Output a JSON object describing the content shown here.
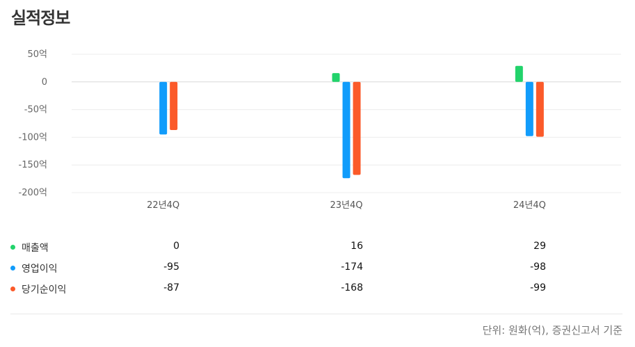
{
  "title": "실적정보",
  "chart_data": {
    "type": "bar",
    "categories": [
      "22년4Q",
      "23년4Q",
      "24년4Q"
    ],
    "series": [
      {
        "name": "매출액",
        "color": "#22d36b",
        "values": [
          0,
          16,
          29
        ]
      },
      {
        "name": "영업이익",
        "color": "#119cfb",
        "values": [
          -95,
          -174,
          -98
        ]
      },
      {
        "name": "당기순이익",
        "color": "#fb5a2a",
        "values": [
          -87,
          -168,
          -99
        ]
      }
    ],
    "yticks": [
      {
        "value": 50,
        "label": "50억"
      },
      {
        "value": 0,
        "label": "0"
      },
      {
        "value": -50,
        "label": "-50억"
      },
      {
        "value": -100,
        "label": "-100억"
      },
      {
        "value": -150,
        "label": "-150억"
      },
      {
        "value": -200,
        "label": "-200억"
      }
    ],
    "ylim": [
      -200,
      50
    ],
    "grid": true
  },
  "table": {
    "rows": [
      {
        "label": "매출액",
        "color": "#22d36b",
        "values": [
          "0",
          "16",
          "29"
        ]
      },
      {
        "label": "영업이익",
        "color": "#119cfb",
        "values": [
          "-95",
          "-174",
          "-98"
        ]
      },
      {
        "label": "당기순이익",
        "color": "#fb5a2a",
        "values": [
          "-87",
          "-168",
          "-99"
        ]
      }
    ]
  },
  "footnote": "단위: 원화(억), 증권신고서 기준"
}
